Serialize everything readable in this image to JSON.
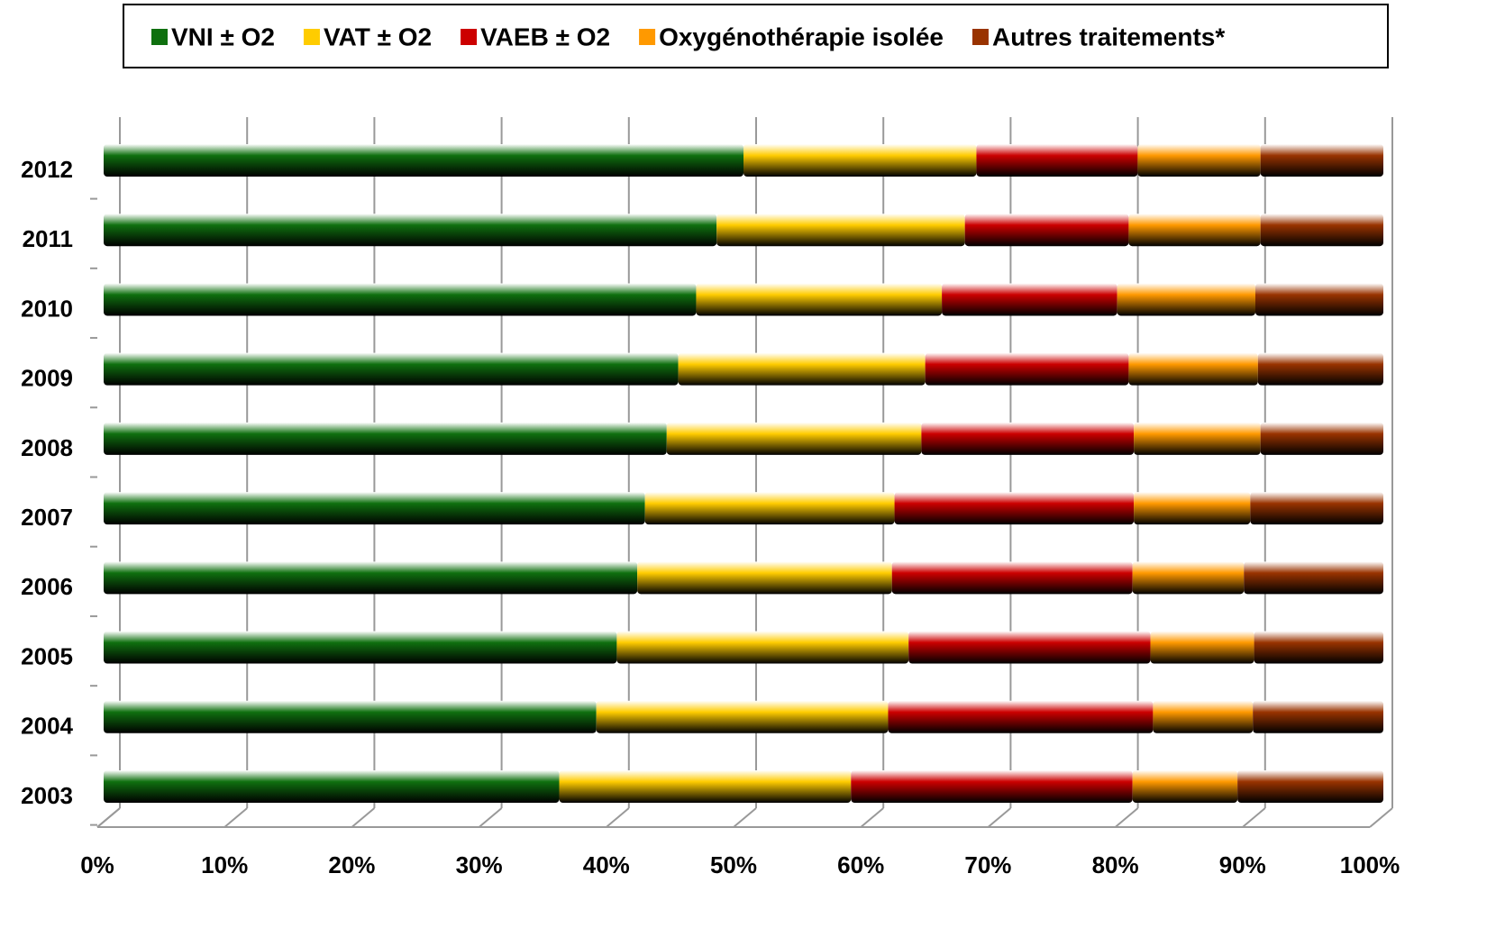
{
  "chart_data": {
    "type": "stacked_bar_horizontal",
    "categories": [
      "2003",
      "2004",
      "2005",
      "2006",
      "2007",
      "2008",
      "2009",
      "2010",
      "2011",
      "2012"
    ],
    "series": [
      {
        "name": "VNI ± O2",
        "color": "#0f700f",
        "values": [
          35.6,
          38.5,
          40.1,
          41.7,
          42.3,
          44.0,
          44.9,
          46.3,
          47.9,
          50.0
        ]
      },
      {
        "name": "VAT ± O2",
        "color": "#ffcc00",
        "values": [
          22.8,
          22.8,
          22.8,
          19.9,
          19.5,
          19.9,
          19.3,
          19.2,
          19.4,
          18.2
        ]
      },
      {
        "name": "VAEB ± O2",
        "color": "#cc0000",
        "values": [
          22.0,
          20.7,
          18.9,
          18.8,
          18.7,
          16.6,
          15.9,
          13.7,
          12.8,
          12.6
        ]
      },
      {
        "name": "Oxygénothérapie isolée",
        "color": "#ff9900",
        "values": [
          8.2,
          7.8,
          8.1,
          8.7,
          9.1,
          9.9,
          10.1,
          10.8,
          10.3,
          9.6
        ]
      },
      {
        "name": "Autres traitements*",
        "color": "#993300",
        "values": [
          11.4,
          10.2,
          10.1,
          10.9,
          10.4,
          9.6,
          9.8,
          10.0,
          9.6,
          9.6
        ]
      }
    ],
    "xlim": [
      0,
      100
    ],
    "xticks": [
      {
        "value": 0,
        "label": "0%"
      },
      {
        "value": 10,
        "label": "10%"
      },
      {
        "value": 20,
        "label": "20%"
      },
      {
        "value": 30,
        "label": "30%"
      },
      {
        "value": 40,
        "label": "40%"
      },
      {
        "value": 50,
        "label": "50%"
      },
      {
        "value": 60,
        "label": "60%"
      },
      {
        "value": 70,
        "label": "70%"
      },
      {
        "value": 80,
        "label": "80%"
      },
      {
        "value": 90,
        "label": "90%"
      },
      {
        "value": 100,
        "label": "100%"
      }
    ],
    "grid": true,
    "legend": "top"
  }
}
